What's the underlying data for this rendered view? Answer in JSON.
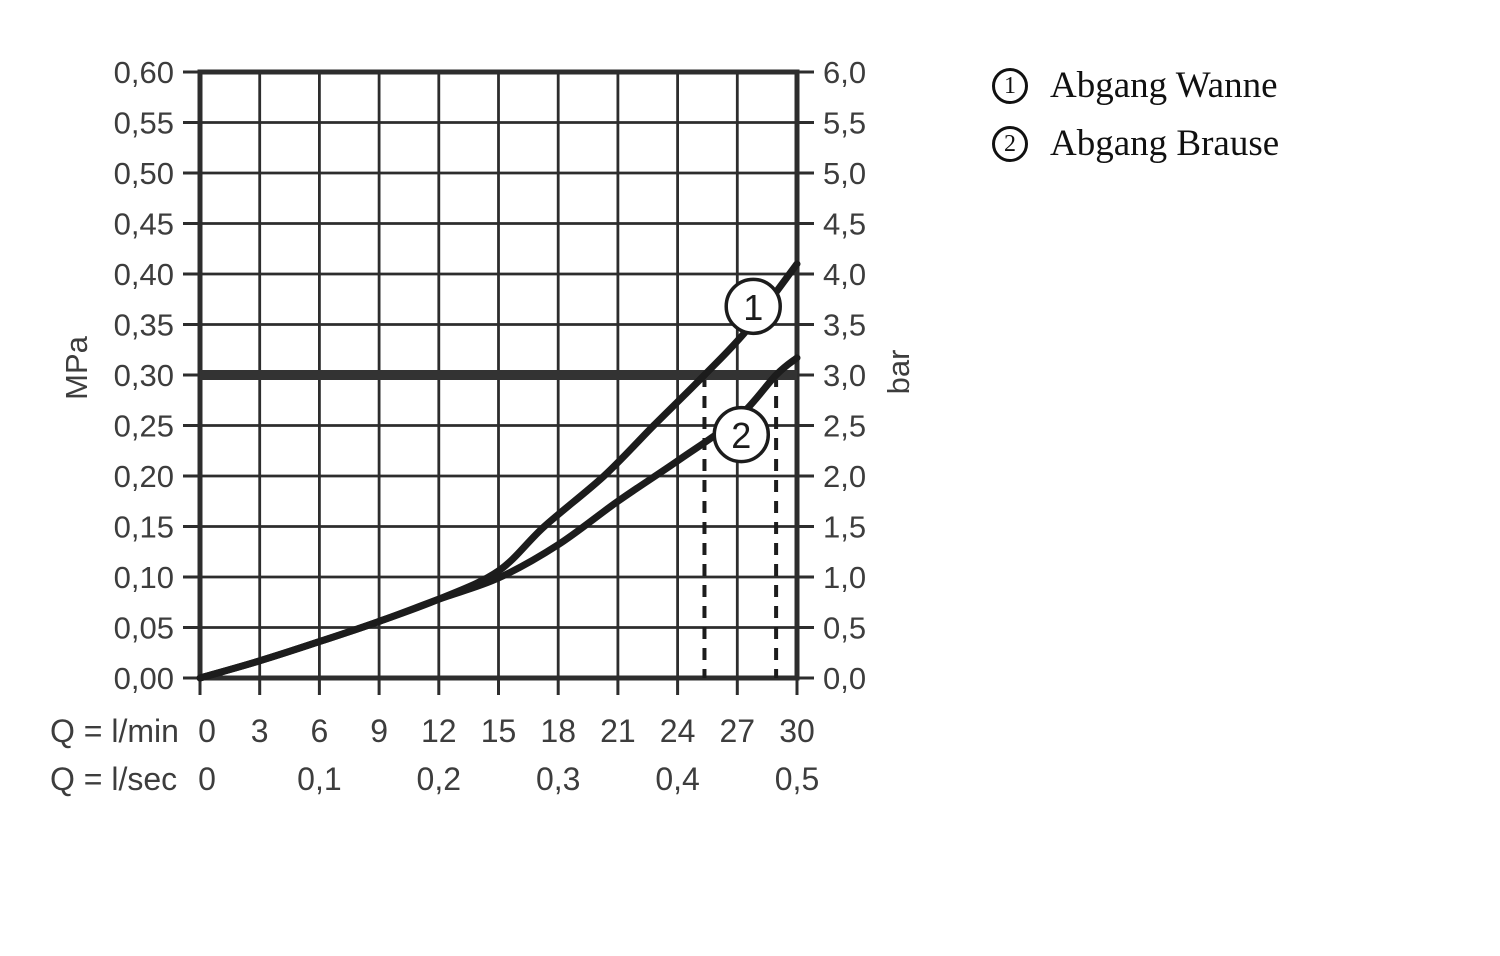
{
  "legend": {
    "items": [
      {
        "symbol": "1",
        "label": "Abgang Wanne"
      },
      {
        "symbol": "2",
        "label": "Abgang Brause"
      }
    ]
  },
  "chart_data": {
    "type": "line",
    "title": "",
    "grid": true,
    "legend_position": "top-right",
    "x_axis": {
      "range_lmin": [
        0,
        30
      ],
      "grid_step_lmin": 3,
      "unit_rows": [
        {
          "label": "Q = l/min",
          "positions_lmin": [
            0,
            3,
            6,
            9,
            12,
            15,
            18,
            21,
            24,
            27,
            30
          ],
          "labels": [
            "0",
            "3",
            "6",
            "9",
            "12",
            "15",
            "18",
            "21",
            "24",
            "27",
            "30"
          ]
        },
        {
          "label": "Q = l/sec",
          "positions_lmin": [
            0,
            6,
            12,
            18,
            24,
            30
          ],
          "labels": [
            "0",
            "0,1",
            "0,2",
            "0,3",
            "0,4",
            "0,5"
          ]
        }
      ]
    },
    "y_axis_left": {
      "unit": "MPa",
      "range": [
        0,
        0.6
      ],
      "step": 0.05,
      "labels": [
        "0,00",
        "0,05",
        "0,10",
        "0,15",
        "0,20",
        "0,25",
        "0,30",
        "0,35",
        "0,40",
        "0,45",
        "0,50",
        "0,55",
        "0,60"
      ]
    },
    "y_axis_right": {
      "unit": "bar",
      "range": [
        0,
        6
      ],
      "step": 0.5,
      "labels": [
        "0,0",
        "0,5",
        "1,0",
        "1,5",
        "2,0",
        "2,5",
        "3,0",
        "3,5",
        "4,0",
        "4,5",
        "5,0",
        "5,5",
        "6,0"
      ]
    },
    "reference_line_mpa": 0.3,
    "guide_lines_lmin": [
      25.35,
      28.95
    ],
    "series": [
      {
        "name": "Abgang Wanne",
        "marker": "1",
        "marker_center": {
          "lmin": 27.8,
          "mpa": 0.368
        },
        "points_lmin_mpa": [
          [
            0,
            0
          ],
          [
            3,
            0.017
          ],
          [
            6,
            0.036
          ],
          [
            9,
            0.056
          ],
          [
            12,
            0.078
          ],
          [
            15,
            0.106
          ],
          [
            17.3,
            0.15
          ],
          [
            20.3,
            0.2
          ],
          [
            22.8,
            0.25
          ],
          [
            25.35,
            0.3
          ],
          [
            27.5,
            0.345
          ],
          [
            30,
            0.41
          ]
        ]
      },
      {
        "name": "Abgang Brause",
        "marker": "2",
        "marker_center": {
          "lmin": 27.2,
          "mpa": 0.241
        },
        "points_lmin_mpa": [
          [
            0,
            0
          ],
          [
            3,
            0.017
          ],
          [
            6,
            0.036
          ],
          [
            9,
            0.056
          ],
          [
            12,
            0.078
          ],
          [
            15,
            0.099
          ],
          [
            18,
            0.132
          ],
          [
            21,
            0.175
          ],
          [
            24,
            0.215
          ],
          [
            27,
            0.257
          ],
          [
            28.95,
            0.3
          ],
          [
            30,
            0.317
          ]
        ]
      }
    ],
    "colors": {
      "ink": "#1c1c1c",
      "grid": "#2d2d2d",
      "frame": "#2d2d2d",
      "reference_line": "#333333",
      "label": "#3d3d3d",
      "background": "#ffffff"
    }
  }
}
